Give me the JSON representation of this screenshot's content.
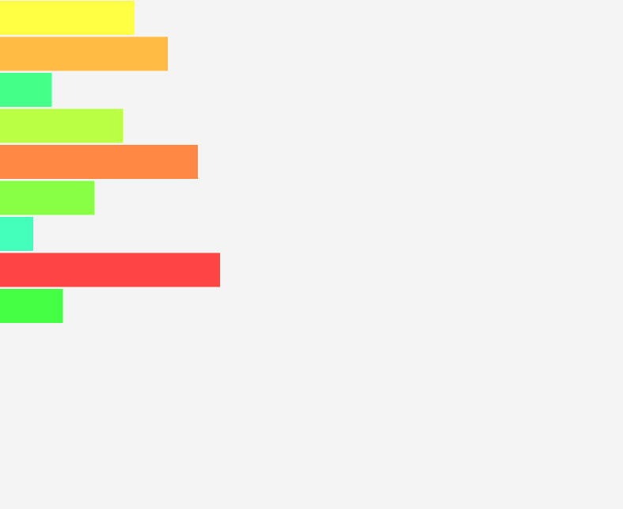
{
  "chart_data": {
    "type": "bar",
    "orientation": "horizontal",
    "title": "",
    "xlabel": "",
    "ylabel": "",
    "axes_visible": false,
    "grid": false,
    "legend": "none",
    "categories": [
      "",
      "",
      "",
      "",
      "",
      "",
      "",
      "",
      ""
    ],
    "values": [
      170,
      212,
      65,
      155,
      250,
      119,
      42,
      278,
      79
    ],
    "colors": [
      "#ffff44",
      "#ffbb44",
      "#44ff88",
      "#bbff44",
      "#ff8844",
      "#88ff44",
      "#44ffbb",
      "#ff4444",
      "#44ff44"
    ],
    "xlim": [
      0,
      787
    ]
  }
}
